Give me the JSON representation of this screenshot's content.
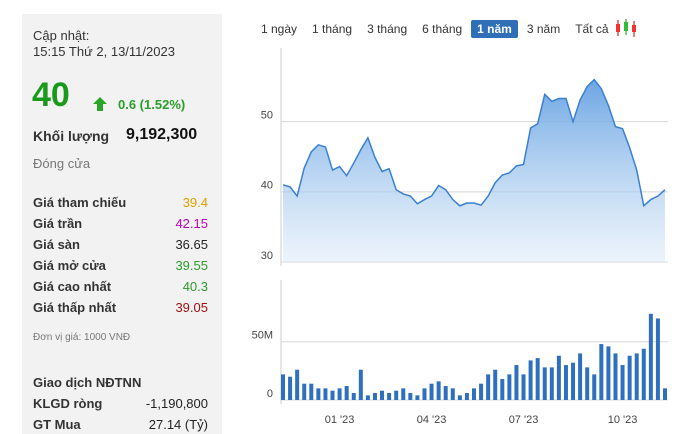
{
  "quote": {
    "updated_label": "Cập nhật:",
    "updated": "15:15 Thứ 2, 13/11/2023",
    "price": "40",
    "change": "0.6 (1.52%)",
    "volume_label": "Khối lượng",
    "volume": "9,192,300",
    "status": "Đóng cửa",
    "rows": [
      {
        "label": "Giá tham chiếu",
        "value": "39.4",
        "color": "#e0a000"
      },
      {
        "label": "Giá trần",
        "value": "42.15",
        "color": "#c000c0"
      },
      {
        "label": "Giá sàn",
        "value": "36.65",
        "color": "#222222"
      },
      {
        "label": "Giá mở cửa",
        "value": "39.55",
        "color": "#2a9d2a"
      },
      {
        "label": "Giá cao nhất",
        "value": "40.3",
        "color": "#2a9d2a"
      },
      {
        "label": "Giá thấp nhất",
        "value": "39.05",
        "color": "#a01010"
      }
    ],
    "unit_note": "Đơn vị giá: 1000 VNĐ",
    "foreign_title": "Giao dịch NĐTNN",
    "foreign_rows": [
      {
        "label": "KLGD ròng",
        "value": "-1,190,800"
      },
      {
        "label": "GT Mua",
        "value": "27.14 (Tỷ)"
      }
    ]
  },
  "tabs": [
    "1 ngày",
    "1 tháng",
    "3 tháng",
    "6 tháng",
    "1 năm",
    "3 năm",
    "Tất cả"
  ],
  "active_tab": 4,
  "chart_data": [
    {
      "type": "area",
      "color": "#3a80d2",
      "ylim": [
        30,
        60.5
      ],
      "yticks": [
        30,
        40,
        50
      ],
      "grid": true,
      "values": [
        41,
        40.7,
        39.4,
        43.4,
        45.7,
        46.7,
        46.4,
        43.1,
        43.6,
        42.3,
        44.1,
        46,
        47.7,
        44.9,
        42.9,
        43.3,
        40.3,
        39.7,
        39.4,
        38.3,
        38.9,
        39.4,
        40.9,
        40.3,
        38.9,
        38,
        38.4,
        38.4,
        38.1,
        39.4,
        41.3,
        42.4,
        42.7,
        43.7,
        43.9,
        49.1,
        49.7,
        53.9,
        52.9,
        53.3,
        53.3,
        50,
        53.1,
        55,
        56,
        54.7,
        52.3,
        49.3,
        49,
        46.3,
        43.1,
        38,
        38.9,
        39.4,
        40.3
      ]
    },
    {
      "type": "bar",
      "color": "#2f6fc0",
      "ylim": [
        0,
        103000000
      ],
      "yticks": [
        0,
        {
          "value": 50000000,
          "label": "50M"
        }
      ],
      "grid": true,
      "categories": [
        null,
        null,
        null,
        null,
        null,
        null,
        null,
        null,
        "01 '23",
        null,
        null,
        null,
        null,
        null,
        null,
        null,
        null,
        null,
        null,
        null,
        null,
        "04 '23",
        null,
        null,
        null,
        null,
        null,
        null,
        null,
        null,
        null,
        null,
        null,
        null,
        "07 '23",
        null,
        null,
        null,
        null,
        null,
        null,
        null,
        null,
        null,
        null,
        null,
        null,
        null,
        "10 '23",
        null,
        null,
        null,
        null,
        null,
        null
      ],
      "values": [
        22000000,
        20000000,
        26000000,
        14000000,
        14000000,
        10000000,
        10000000,
        8000000,
        10000000,
        12000000,
        6000000,
        26000000,
        4000000,
        6000000,
        8000000,
        6000000,
        8000000,
        10000000,
        6000000,
        4000000,
        10000000,
        14000000,
        16000000,
        12000000,
        10000000,
        4000000,
        6000000,
        10000000,
        14000000,
        22000000,
        26000000,
        18000000,
        22000000,
        30000000,
        22000000,
        34000000,
        36000000,
        28000000,
        28000000,
        38000000,
        30000000,
        32000000,
        40000000,
        28000000,
        22000000,
        48000000,
        46000000,
        40000000,
        30000000,
        38000000,
        40000000,
        44000000,
        74000000,
        70000000,
        10000000
      ]
    }
  ]
}
